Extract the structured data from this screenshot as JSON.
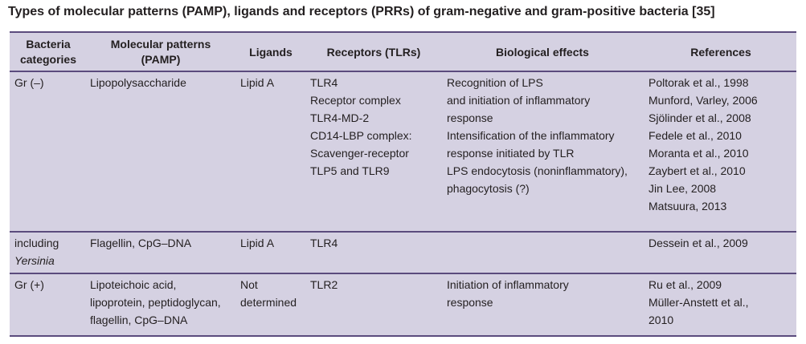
{
  "title": "Types of molecular patterns (PAMP), ligands and receptors (PRRs) of gram-negative and gram-positive bacteria [35]",
  "table": {
    "header": [
      [
        "Bacteria",
        "categories"
      ],
      [
        "Molecular patterns",
        "(PAMP)"
      ],
      [
        "Ligands"
      ],
      [
        "Receptors (TLRs)"
      ],
      [
        "Biological effects"
      ],
      [
        "References"
      ]
    ],
    "rows": [
      [
        [
          "Gr (–)"
        ],
        [
          "Lipopolysaccharide"
        ],
        [
          "Lipid A"
        ],
        [
          "TLR4",
          "Receptor complex",
          "TLR4-MD-2",
          "CD14-LBP complex:",
          "Scavenger-receptor",
          "TLP5 and TLR9"
        ],
        [
          "Recognition of LPS",
          "and initiation of inflammatory",
          "response",
          "Intensification of the inflammatory",
          "response initiated by TLR",
          "LPS endocytosis (noninflammatory),",
          "phagocytosis (?)"
        ],
        [
          "Poltorak et al., 1998",
          "Munford, Varley, 2006",
          "Sjölinder et al., 2008",
          "Fedele et al., 2010",
          "Moranta et al., 2010",
          "Zaybert et al.,  2010",
          "Jin Lee, 2008",
          "Matsuura, 2013"
        ]
      ],
      [
        [
          "including",
          "Yersinia"
        ],
        [
          "Flagellin, CpG–DNA"
        ],
        [
          "Lipid A"
        ],
        [
          "TLR4"
        ],
        [],
        [
          "Dessein et al., 2009"
        ]
      ],
      [
        [
          "Gr (+)"
        ],
        [
          "Lipoteichoic acid,",
          "lipoprotein, peptidoglycan,",
          "flagellin, CpG–DNA"
        ],
        [
          "Not",
          "determined"
        ],
        [
          "TLR2"
        ],
        [
          "Initiation of inflammatory",
          "response"
        ],
        [
          "Ru et al., 2009",
          "Müller-Anstett et al.,",
          "2010"
        ]
      ]
    ]
  }
}
